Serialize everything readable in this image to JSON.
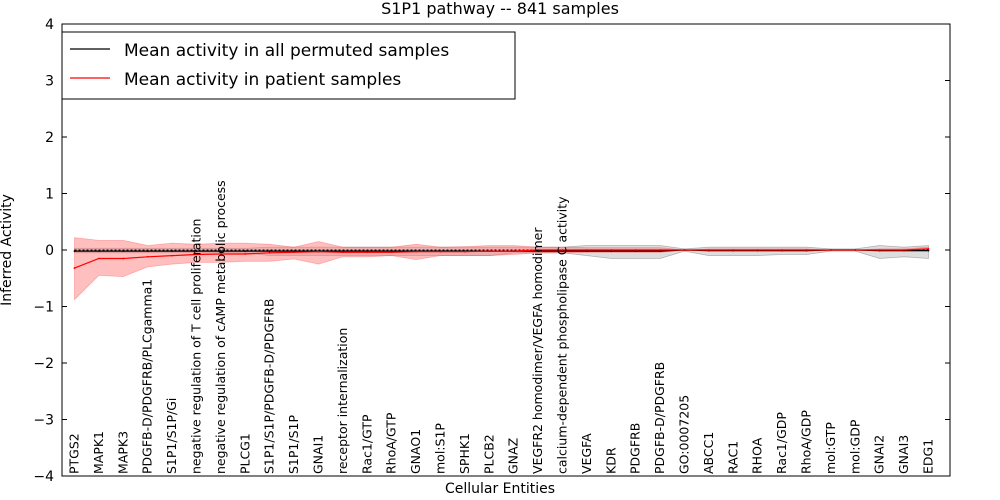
{
  "chart_data": {
    "type": "line",
    "title": "S1P1 pathway -- 841 samples",
    "xlabel": "Cellular Entities",
    "ylabel": "Inferred Activity",
    "ylim": [
      -4,
      4
    ],
    "yticks": [
      4,
      3,
      2,
      1,
      0,
      -1,
      -2,
      -3,
      -4
    ],
    "ytick_labels": [
      "4",
      "3",
      "2",
      "1",
      "0",
      "−1",
      "−2",
      "−3",
      "−4"
    ],
    "grid": false,
    "legend_position": "top-left",
    "categories": [
      "PTGS2",
      "MAPK1",
      "MAPK3",
      "PDGFB-D/PDGFRB/PLCgamma1",
      "S1P1/S1P/Gi",
      "negative regulation of T cell proliferation",
      "negative regulation of cAMP metabolic process",
      "PLCG1",
      "S1P1/S1P/PDGFB-D/PDGFRB",
      "S1P1/S1P",
      "GNAI1",
      "receptor internalization",
      "Rac1/GTP",
      "RhoA/GTP",
      "GNAO1",
      "mol:S1P",
      "SPHK1",
      "PLCB2",
      "GNAZ",
      "VEGFR2 homodimer/VEGFA homodimer",
      "calcium-dependent phospholipase C activity",
      "VEGFA",
      "KDR",
      "PDGFRB",
      "PDGFB-D/PDGFRB",
      "GO:0007205",
      "ABCC1",
      "RAC1",
      "RHOA",
      "Rac1/GDP",
      "RhoA/GDP",
      "mol:GTP",
      "mol:GDP",
      "GNAI2",
      "GNAI3",
      "EDG1"
    ],
    "series": [
      {
        "name": "Mean activity in all permuted samples",
        "color": "#000000",
        "band_color": "#b3b3b3",
        "values": [
          -0.02,
          -0.02,
          -0.02,
          -0.02,
          -0.02,
          -0.02,
          -0.02,
          -0.02,
          -0.02,
          -0.02,
          -0.02,
          -0.02,
          -0.02,
          -0.02,
          -0.02,
          -0.02,
          -0.02,
          -0.02,
          -0.02,
          -0.02,
          -0.02,
          -0.02,
          -0.02,
          -0.02,
          -0.02,
          0.0,
          -0.01,
          -0.01,
          -0.01,
          -0.01,
          -0.01,
          0.0,
          0.0,
          -0.01,
          -0.01,
          -0.01
        ],
        "lower": [
          -0.05,
          -0.05,
          -0.05,
          -0.05,
          -0.05,
          -0.05,
          -0.05,
          -0.05,
          -0.1,
          -0.1,
          -0.1,
          -0.1,
          -0.1,
          -0.1,
          -0.1,
          -0.1,
          -0.1,
          -0.1,
          -0.05,
          -0.05,
          -0.05,
          -0.1,
          -0.15,
          -0.15,
          -0.15,
          -0.02,
          -0.1,
          -0.1,
          -0.1,
          -0.08,
          -0.08,
          -0.02,
          -0.02,
          -0.15,
          -0.12,
          -0.15
        ],
        "upper": [
          0.03,
          0.03,
          0.03,
          0.03,
          0.03,
          0.03,
          0.03,
          0.03,
          0.05,
          0.05,
          0.05,
          0.05,
          0.05,
          0.05,
          0.05,
          0.05,
          0.05,
          0.05,
          0.05,
          0.05,
          0.05,
          0.08,
          0.08,
          0.08,
          0.08,
          0.02,
          0.05,
          0.05,
          0.05,
          0.05,
          0.05,
          0.02,
          0.02,
          0.08,
          0.05,
          0.08
        ]
      },
      {
        "name": "Mean activity in patient samples",
        "color": "#ff0000",
        "band_color": "#ff8080",
        "values": [
          -0.32,
          -0.15,
          -0.15,
          -0.12,
          -0.1,
          -0.08,
          -0.07,
          -0.07,
          -0.05,
          -0.04,
          -0.03,
          -0.04,
          -0.04,
          -0.04,
          -0.03,
          -0.03,
          -0.03,
          -0.02,
          -0.02,
          0.0,
          0.0,
          0.0,
          0.0,
          0.0,
          0.0,
          0.0,
          0.0,
          0.0,
          0.0,
          0.0,
          0.0,
          0.0,
          0.0,
          0.0,
          0.0,
          0.02
        ],
        "lower": [
          -0.88,
          -0.45,
          -0.47,
          -0.3,
          -0.25,
          -0.22,
          -0.22,
          -0.2,
          -0.2,
          -0.16,
          -0.25,
          -0.12,
          -0.12,
          -0.1,
          -0.17,
          -0.1,
          -0.1,
          -0.1,
          -0.08,
          -0.05,
          -0.05,
          -0.04,
          -0.04,
          -0.04,
          -0.04,
          0.0,
          -0.02,
          -0.02,
          -0.02,
          -0.02,
          -0.02,
          0.0,
          0.0,
          -0.02,
          -0.02,
          -0.02
        ],
        "upper": [
          0.22,
          0.17,
          0.17,
          0.08,
          0.12,
          0.1,
          0.12,
          0.12,
          0.1,
          0.05,
          0.15,
          0.05,
          0.05,
          0.05,
          0.1,
          0.05,
          0.06,
          0.08,
          0.08,
          0.05,
          0.05,
          0.04,
          0.04,
          0.04,
          0.04,
          0.0,
          0.02,
          0.02,
          0.02,
          0.02,
          0.02,
          0.0,
          0.0,
          0.02,
          0.02,
          0.05
        ]
      }
    ]
  }
}
